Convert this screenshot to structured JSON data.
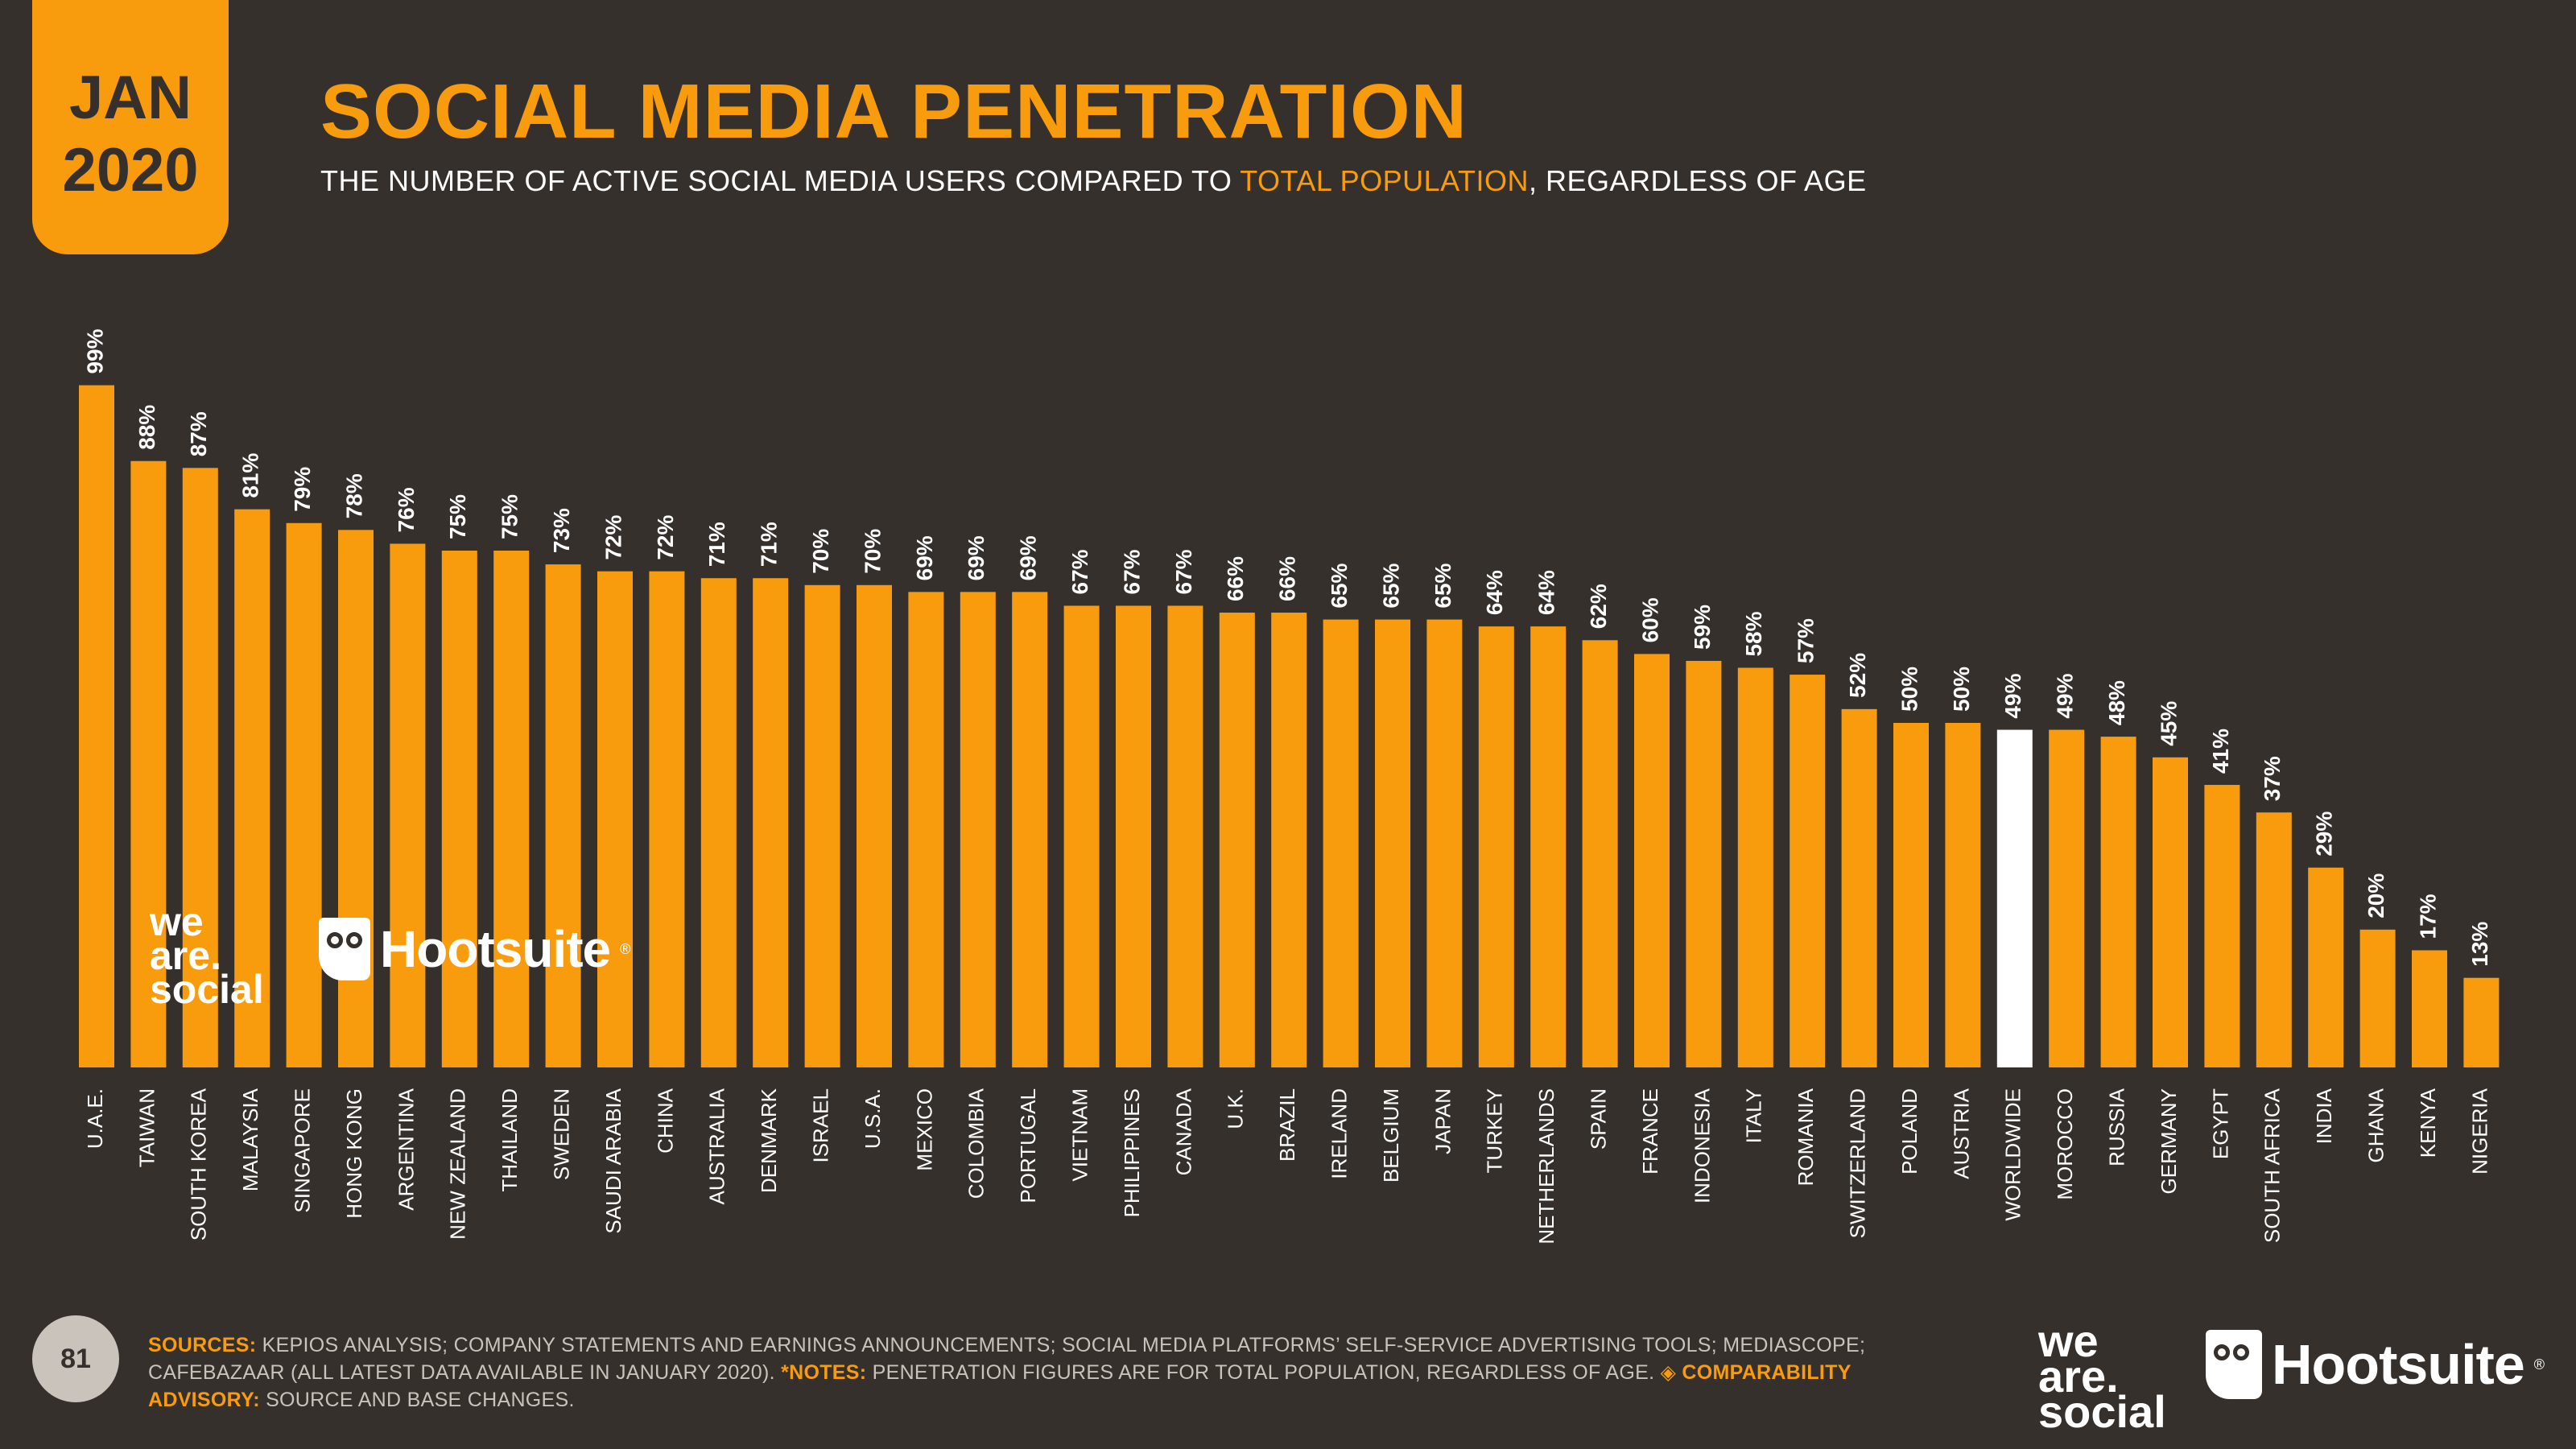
{
  "badge": {
    "month": "JAN",
    "year": "2020"
  },
  "header": {
    "title": "SOCIAL MEDIA PENETRATION",
    "subtitle_pre": "THE NUMBER OF ACTIVE SOCIAL MEDIA USERS COMPARED TO ",
    "subtitle_highlight": "TOTAL POPULATION",
    "subtitle_post": ", REGARDLESS OF AGE"
  },
  "colors": {
    "background": "#35302c",
    "accent": "#f89c0e",
    "highlight_bar": "#ffffff",
    "text": "#ffffff"
  },
  "chart_data": {
    "type": "bar",
    "title": "SOCIAL MEDIA PENETRATION",
    "xlabel": "",
    "ylabel": "",
    "ylim": [
      0,
      100
    ],
    "categories": [
      "U.A.E.",
      "TAIWAN",
      "SOUTH KOREA",
      "MALAYSIA",
      "SINGAPORE",
      "HONG KONG",
      "ARGENTINA",
      "NEW ZEALAND",
      "THAILAND",
      "SWEDEN",
      "SAUDI ARABIA",
      "CHINA",
      "AUSTRALIA",
      "DENMARK",
      "ISRAEL",
      "U.S.A.",
      "MEXICO",
      "COLOMBIA",
      "PORTUGAL",
      "VIETNAM",
      "PHILIPPINES",
      "CANADA",
      "U.K.",
      "BRAZIL",
      "IRELAND",
      "BELGIUM",
      "JAPAN",
      "TURKEY",
      "NETHERLANDS",
      "SPAIN",
      "FRANCE",
      "INDONESIA",
      "ITALY",
      "ROMANIA",
      "SWITZERLAND",
      "POLAND",
      "AUSTRIA",
      "WORLDWIDE",
      "MOROCCO",
      "RUSSIA",
      "GERMANY",
      "EGYPT",
      "SOUTH AFRICA",
      "INDIA",
      "GHANA",
      "KENYA",
      "NIGERIA"
    ],
    "values": [
      99,
      88,
      87,
      81,
      79,
      78,
      76,
      75,
      75,
      73,
      72,
      72,
      71,
      71,
      70,
      70,
      69,
      69,
      69,
      67,
      67,
      67,
      66,
      66,
      65,
      65,
      65,
      64,
      64,
      62,
      60,
      59,
      58,
      57,
      52,
      50,
      50,
      49,
      49,
      48,
      45,
      41,
      37,
      29,
      20,
      17,
      13
    ],
    "labels": [
      "99%",
      "88%",
      "87%",
      "81%",
      "79%",
      "78%",
      "76%",
      "75%",
      "75%",
      "73%",
      "72%",
      "72%",
      "71%",
      "71%",
      "70%",
      "70%",
      "69%",
      "69%",
      "69%",
      "67%",
      "67%",
      "67%",
      "66%",
      "66%",
      "65%",
      "65%",
      "65%",
      "64%",
      "64%",
      "62%",
      "60%",
      "59%",
      "58%",
      "57%",
      "52%",
      "50%",
      "50%",
      "49%",
      "49%",
      "48%",
      "45%",
      "41%",
      "37%",
      "29%",
      "20%",
      "17%",
      "13%"
    ],
    "highlight_category": "WORLDWIDE"
  },
  "watermark": {
    "brand1": "we are social",
    "brand1_lines": [
      "we",
      "are.",
      "social"
    ],
    "brand2": "Hootsuite",
    "brand2_icon": "owl-icon"
  },
  "footer": {
    "page_number": "81",
    "sources_label": "SOURCES:",
    "sources_text": " KEPIOS ANALYSIS; COMPANY STATEMENTS AND EARNINGS ANNOUNCEMENTS; SOCIAL MEDIA PLATFORMS’ SELF-SERVICE ADVERTISING TOOLS; MEDIASCOPE; CAFEBAZAAR (ALL LATEST DATA AVAILABLE IN JANUARY 2020).",
    "notes_label": "*NOTES:",
    "notes_text": " PENETRATION FIGURES ARE FOR TOTAL POPULATION, REGARDLESS OF AGE.",
    "advisory_label": "◈ COMPARABILITY ADVISORY:",
    "advisory_text": " SOURCE AND BASE CHANGES.",
    "brand1_lines": [
      "we",
      "are.",
      "social"
    ],
    "brand2": "Hootsuite",
    "registered": "®"
  }
}
